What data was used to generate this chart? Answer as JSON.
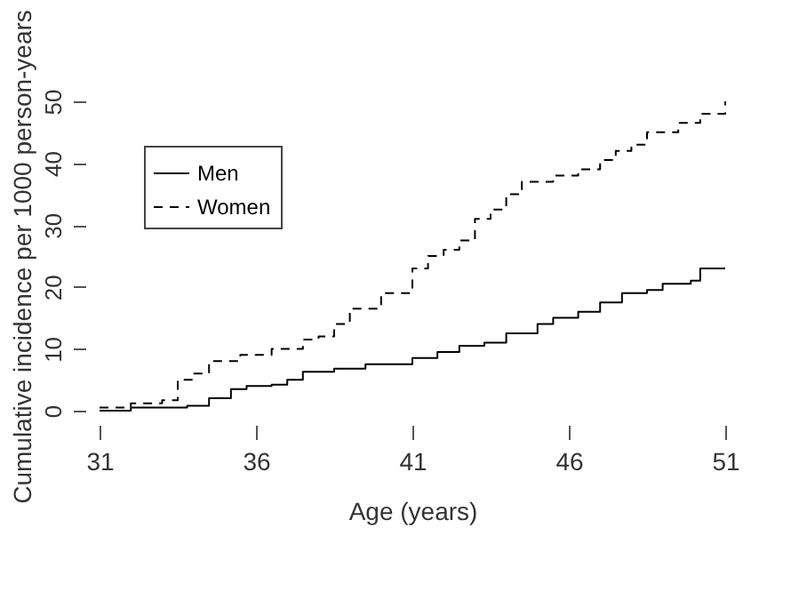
{
  "chart_data": {
    "type": "step",
    "xlabel": "Age (years)",
    "ylabel": "Cumulative incidence per 1000 person-years",
    "xlim": [
      31,
      51
    ],
    "xticks": [
      31,
      36,
      41,
      46,
      51
    ],
    "ylim": [
      0,
      50
    ],
    "yticks": [
      0,
      10,
      20,
      30,
      40,
      50
    ],
    "grid": false,
    "legend": "top left",
    "series": [
      {
        "name": "Men",
        "color": "#000000",
        "line_style": "solid",
        "x": [
          31,
          32,
          33.8,
          34.5,
          35.2,
          35.7,
          36.5,
          37,
          37.5,
          38.5,
          39.5,
          41,
          41.8,
          42.5,
          43.3,
          44,
          45,
          45.5,
          46.3,
          47,
          47.7,
          48.5,
          49,
          49.9,
          50.2,
          51
        ],
        "values": [
          0,
          0.5,
          0.8,
          2,
          3.5,
          4,
          4.2,
          5,
          6.3,
          6.8,
          7.5,
          8.5,
          9.5,
          10.5,
          11,
          12.5,
          14,
          15,
          16,
          17.5,
          19,
          19.5,
          20.5,
          21,
          23,
          23
        ]
      },
      {
        "name": "Women",
        "color": "#000000",
        "line_style": "dashed",
        "x": [
          31,
          32,
          33,
          33.5,
          34,
          34.5,
          35.5,
          36.5,
          37.5,
          38,
          38.5,
          39,
          40,
          41,
          41.5,
          42,
          42.5,
          43,
          43.5,
          44,
          44.5,
          45.5,
          46.3,
          47,
          47.5,
          48,
          48.5,
          49.5,
          50.2,
          51
        ],
        "values": [
          0.5,
          1.2,
          1.7,
          5,
          6,
          8,
          9,
          10,
          11.5,
          12,
          14,
          16.5,
          19,
          23,
          25,
          26,
          27.5,
          31,
          32.5,
          35,
          37,
          38,
          39,
          40.5,
          42,
          43,
          45,
          46.5,
          48,
          50
        ]
      }
    ]
  }
}
